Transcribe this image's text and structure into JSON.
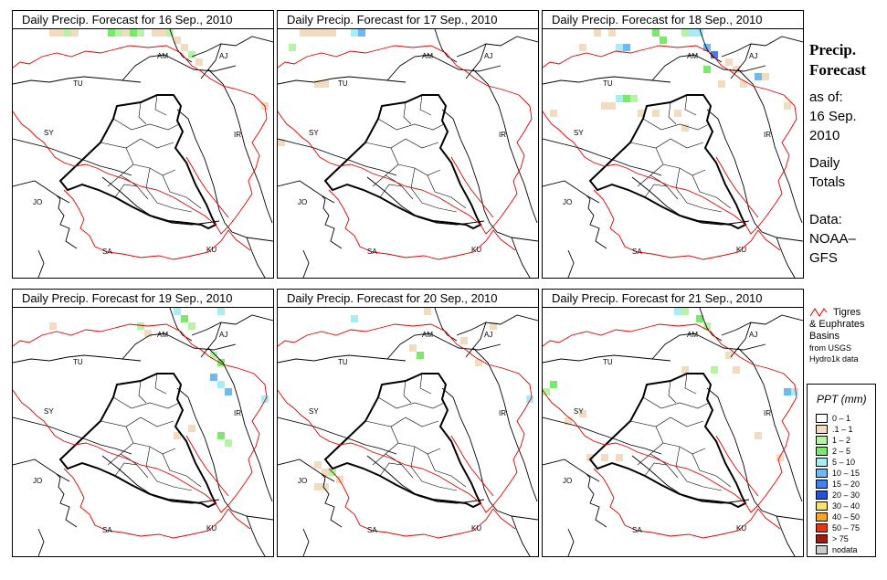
{
  "panels": [
    {
      "title": "Daily Precip. Forecast for  16 Sep., 2010"
    },
    {
      "title": "Daily Precip. Forecast for  17 Sep., 2010"
    },
    {
      "title": "Daily Precip. Forecast for  18 Sep., 2010"
    },
    {
      "title": "Daily Precip. Forecast for  19 Sep., 2010"
    },
    {
      "title": "Daily Precip. Forecast for  20 Sep., 2010"
    },
    {
      "title": "Daily Precip. Forecast for  21 Sep., 2010"
    }
  ],
  "map_labels": {
    "am": "AM",
    "aj": "AJ",
    "tu": "TU",
    "sy": "SY",
    "ir": "IR",
    "jo": "JO",
    "sa": "SA",
    "ku": "KU"
  },
  "sidebar": {
    "title_line1": "Precip.",
    "title_line2": "Forecast",
    "asof_line1": "as of:",
    "asof_line2": "16 Sep.",
    "asof_line3": "2010",
    "totals_line1": "Daily",
    "totals_line2": "Totals",
    "data_line1": "Data:",
    "data_line2": "NOAA–",
    "data_line3": "GFS"
  },
  "basin_legend": {
    "line1": "Tigres",
    "line2": "& Euphrates",
    "line3": "Basins",
    "line4": "from USGS",
    "line5": "Hydro1k data",
    "color": "#e00000"
  },
  "ppt_legend": {
    "title": "PPT (mm)",
    "items": [
      {
        "label": "0 – 1",
        "color": "#ffffff"
      },
      {
        "label": ".1 – 1",
        "color": "#f2dcbf"
      },
      {
        "label": "1 – 2",
        "color": "#b8f2a6"
      },
      {
        "label": "2 – 5",
        "color": "#7ae86a"
      },
      {
        "label": "5 – 10",
        "color": "#a8ecf6"
      },
      {
        "label": "10 – 15",
        "color": "#6fb9f2"
      },
      {
        "label": "15 – 20",
        "color": "#3d82ee"
      },
      {
        "label": "20 – 30",
        "color": "#2255d4"
      },
      {
        "label": "30 – 40",
        "color": "#f4e26a"
      },
      {
        "label": "40 – 50",
        "color": "#f5a623"
      },
      {
        "label": "50 – 75",
        "color": "#e83314"
      },
      {
        "label": "> 75",
        "color": "#9e1b12"
      },
      {
        "label": "nodata",
        "color": "#cccccc"
      }
    ]
  }
}
